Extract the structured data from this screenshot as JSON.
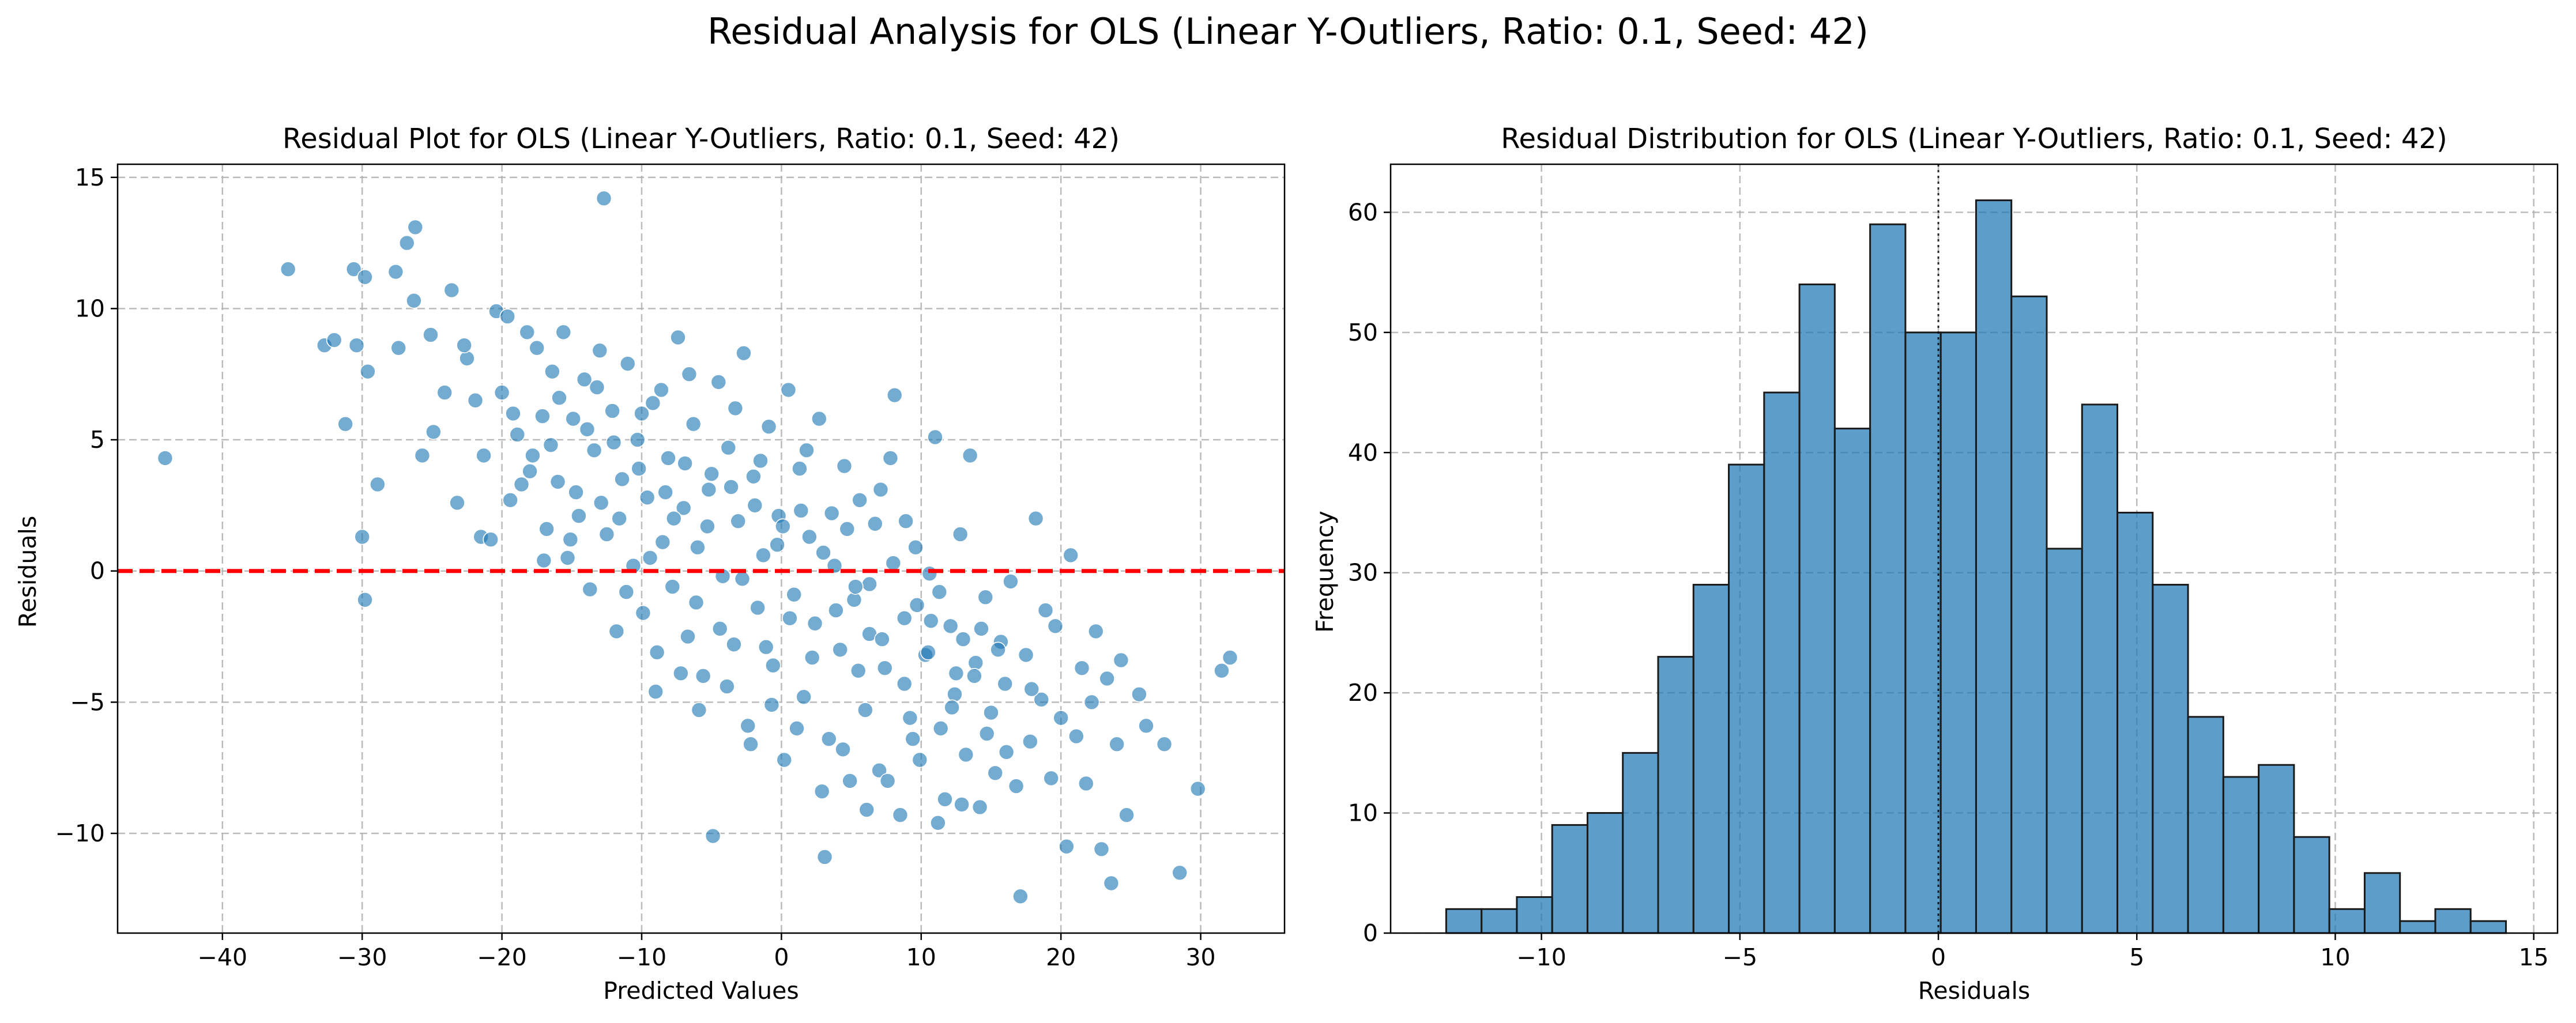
{
  "figure": {
    "suptitle": "Residual Analysis for OLS (Linear Y-Outliers, Ratio: 0.1, Seed: 42)"
  },
  "colors": {
    "points": "#1f77b4",
    "bars": "#1f77b4",
    "bar_edge": "#1a1a1a",
    "zero_line": "#ff0000"
  },
  "chart_data": [
    {
      "type": "scatter",
      "title": "Residual Plot for OLS (Linear Y-Outliers, Ratio: 0.1, Seed: 42)",
      "xlabel": "Predicted Values",
      "ylabel": "Residuals",
      "xlim": [
        -47.5,
        36
      ],
      "ylim": [
        -13.8,
        15.5
      ],
      "xticks": [
        -40,
        -30,
        -20,
        -10,
        0,
        10,
        20,
        30
      ],
      "yticks": [
        -10,
        -5,
        0,
        5,
        10,
        15
      ],
      "xtick_labels": [
        "−40",
        "−30",
        "−20",
        "−10",
        "0",
        "10",
        "20",
        "30"
      ],
      "ytick_labels": [
        "−10",
        "−5",
        "0",
        "5",
        "10",
        "15"
      ],
      "grid": true,
      "reference_line": {
        "y": 0,
        "style": "dashed",
        "color": "#ff0000"
      },
      "points": [
        [
          -44.1,
          4.3
        ],
        [
          -35.3,
          11.5
        ],
        [
          -32.7,
          8.6
        ],
        [
          -32.0,
          8.8
        ],
        [
          -31.2,
          5.6
        ],
        [
          -30.6,
          11.5
        ],
        [
          -30.4,
          8.6
        ],
        [
          -29.8,
          11.2
        ],
        [
          -29.6,
          7.6
        ],
        [
          -30.0,
          1.3
        ],
        [
          -29.8,
          -1.1
        ],
        [
          -28.9,
          3.3
        ],
        [
          -27.6,
          11.4
        ],
        [
          -27.4,
          8.5
        ],
        [
          -26.8,
          12.5
        ],
        [
          -26.2,
          13.1
        ],
        [
          -26.3,
          10.3
        ],
        [
          -25.7,
          4.4
        ],
        [
          -25.1,
          9.0
        ],
        [
          -24.9,
          5.3
        ],
        [
          -24.1,
          6.8
        ],
        [
          -23.6,
          10.7
        ],
        [
          -23.2,
          2.6
        ],
        [
          -22.5,
          8.1
        ],
        [
          -22.7,
          8.6
        ],
        [
          -21.9,
          6.5
        ],
        [
          -21.5,
          1.3
        ],
        [
          -21.3,
          4.4
        ],
        [
          -20.8,
          1.2
        ],
        [
          -20.4,
          9.9
        ],
        [
          -20.0,
          6.8
        ],
        [
          -19.6,
          9.7
        ],
        [
          -19.4,
          2.7
        ],
        [
          -18.9,
          5.2
        ],
        [
          -18.6,
          3.3
        ],
        [
          -18.2,
          9.1
        ],
        [
          -17.8,
          4.4
        ],
        [
          -17.5,
          8.5
        ],
        [
          -17.1,
          5.9
        ],
        [
          -16.8,
          1.6
        ],
        [
          -16.4,
          7.6
        ],
        [
          -16.0,
          3.4
        ],
        [
          -15.6,
          9.1
        ],
        [
          -15.3,
          0.5
        ],
        [
          -14.9,
          5.8
        ],
        [
          -14.5,
          2.1
        ],
        [
          -14.1,
          7.3
        ],
        [
          -13.7,
          -0.7
        ],
        [
          -13.4,
          4.6
        ],
        [
          -13.0,
          8.4
        ],
        [
          -12.7,
          14.2
        ],
        [
          -12.5,
          1.4
        ],
        [
          -12.1,
          6.1
        ],
        [
          -11.8,
          -2.3
        ],
        [
          -11.4,
          3.5
        ],
        [
          -11.0,
          7.9
        ],
        [
          -10.6,
          0.2
        ],
        [
          -10.3,
          5.0
        ],
        [
          -9.9,
          -1.6
        ],
        [
          -9.6,
          2.8
        ],
        [
          -9.2,
          6.4
        ],
        [
          -8.9,
          -3.1
        ],
        [
          -8.5,
          1.1
        ],
        [
          -8.1,
          4.3
        ],
        [
          -7.8,
          -0.6
        ],
        [
          -7.4,
          8.9
        ],
        [
          -7.0,
          2.4
        ],
        [
          -6.7,
          -2.5
        ],
        [
          -6.3,
          5.6
        ],
        [
          -6.0,
          0.9
        ],
        [
          -5.6,
          -4.0
        ],
        [
          -5.2,
          3.1
        ],
        [
          -4.9,
          -10.1
        ],
        [
          -4.5,
          7.2
        ],
        [
          -4.2,
          -0.2
        ],
        [
          -3.8,
          4.7
        ],
        [
          -3.4,
          -2.8
        ],
        [
          -3.1,
          1.9
        ],
        [
          -2.7,
          8.3
        ],
        [
          -2.4,
          -5.9
        ],
        [
          -2.0,
          3.6
        ],
        [
          -1.7,
          -1.4
        ],
        [
          -1.3,
          0.6
        ],
        [
          -0.9,
          5.5
        ],
        [
          -0.6,
          -3.6
        ],
        [
          -0.2,
          2.1
        ],
        [
          0.2,
          -7.2
        ],
        [
          0.5,
          6.9
        ],
        [
          0.9,
          -0.9
        ],
        [
          1.3,
          3.9
        ],
        [
          1.6,
          -4.8
        ],
        [
          2.0,
          1.3
        ],
        [
          2.4,
          -2.0
        ],
        [
          2.7,
          5.8
        ],
        [
          3.1,
          -10.9
        ],
        [
          3.4,
          -6.4
        ],
        [
          3.8,
          0.2
        ],
        [
          4.2,
          -3.0
        ],
        [
          4.5,
          4.0
        ],
        [
          4.9,
          -8.0
        ],
        [
          5.2,
          -1.1
        ],
        [
          5.6,
          2.7
        ],
        [
          6.0,
          -5.3
        ],
        [
          6.3,
          -2.4
        ],
        [
          6.7,
          1.8
        ],
        [
          7.0,
          -7.6
        ],
        [
          7.4,
          -3.7
        ],
        [
          7.8,
          4.3
        ],
        [
          8.1,
          6.7
        ],
        [
          8.5,
          -9.3
        ],
        [
          8.8,
          -1.8
        ],
        [
          9.2,
          -5.6
        ],
        [
          9.6,
          0.9
        ],
        [
          9.9,
          -7.2
        ],
        [
          10.3,
          -3.2
        ],
        [
          10.6,
          -0.1
        ],
        [
          11.0,
          5.1
        ],
        [
          11.4,
          -6.0
        ],
        [
          11.7,
          -8.7
        ],
        [
          12.1,
          -2.1
        ],
        [
          12.4,
          -4.7
        ],
        [
          12.8,
          1.4
        ],
        [
          13.2,
          -7.0
        ],
        [
          13.5,
          4.4
        ],
        [
          13.9,
          -3.5
        ],
        [
          14.2,
          -9.0
        ],
        [
          14.6,
          -1.0
        ],
        [
          15.0,
          -5.4
        ],
        [
          15.3,
          -7.7
        ],
        [
          15.7,
          -2.7
        ],
        [
          16.0,
          -4.3
        ],
        [
          16.4,
          -0.4
        ],
        [
          16.8,
          -8.2
        ],
        [
          17.1,
          -12.4
        ],
        [
          17.5,
          -3.2
        ],
        [
          17.8,
          -6.5
        ],
        [
          18.2,
          2.0
        ],
        [
          18.6,
          -4.9
        ],
        [
          18.9,
          -1.5
        ],
        [
          19.3,
          -7.9
        ],
        [
          19.6,
          -2.1
        ],
        [
          20.0,
          -5.6
        ],
        [
          20.4,
          -10.5
        ],
        [
          20.7,
          0.6
        ],
        [
          21.1,
          -6.3
        ],
        [
          21.5,
          -3.7
        ],
        [
          21.8,
          -8.1
        ],
        [
          22.2,
          -5.0
        ],
        [
          22.5,
          -2.3
        ],
        [
          22.9,
          -10.6
        ],
        [
          23.3,
          -4.1
        ],
        [
          23.6,
          -11.9
        ],
        [
          24.0,
          -6.6
        ],
        [
          24.3,
          -3.4
        ],
        [
          24.7,
          -9.3
        ],
        [
          25.6,
          -4.7
        ],
        [
          26.1,
          -5.9
        ],
        [
          27.4,
          -6.6
        ],
        [
          28.5,
          -11.5
        ],
        [
          29.8,
          -8.3
        ],
        [
          31.5,
          -3.8
        ],
        [
          32.1,
          -3.3
        ],
        [
          -19.2,
          6.0
        ],
        [
          -18.0,
          3.8
        ],
        [
          -17.0,
          0.4
        ],
        [
          -15.9,
          6.6
        ],
        [
          -14.7,
          3.0
        ],
        [
          -13.9,
          5.4
        ],
        [
          -12.9,
          2.6
        ],
        [
          -12.0,
          4.9
        ],
        [
          -11.1,
          -0.8
        ],
        [
          -10.2,
          3.9
        ],
        [
          -9.4,
          0.5
        ],
        [
          -8.6,
          6.9
        ],
        [
          -7.7,
          2.0
        ],
        [
          -6.9,
          4.1
        ],
        [
          -6.1,
          -1.2
        ],
        [
          -5.3,
          1.7
        ],
        [
          -4.4,
          -2.2
        ],
        [
          -3.6,
          3.2
        ],
        [
          -2.8,
          -0.3
        ],
        [
          -1.9,
          2.5
        ],
        [
          -1.1,
          -2.9
        ],
        [
          -0.3,
          1.0
        ],
        [
          0.6,
          -1.8
        ],
        [
          1.4,
          2.3
        ],
        [
          2.2,
          -3.3
        ],
        [
          3.0,
          0.7
        ],
        [
          3.9,
          -1.5
        ],
        [
          4.7,
          1.6
        ],
        [
          5.5,
          -3.8
        ],
        [
          6.3,
          -0.5
        ],
        [
          7.2,
          -2.6
        ],
        [
          8.0,
          0.3
        ],
        [
          8.8,
          -4.3
        ],
        [
          9.7,
          -1.3
        ],
        [
          10.5,
          -3.1
        ],
        [
          11.3,
          -0.8
        ],
        [
          12.2,
          -5.2
        ],
        [
          13.0,
          -2.6
        ],
        [
          13.8,
          -4.0
        ],
        [
          14.7,
          -6.2
        ],
        [
          15.5,
          -3.0
        ],
        [
          -16.5,
          4.8
        ],
        [
          -15.1,
          1.2
        ],
        [
          -13.2,
          7.0
        ],
        [
          -11.6,
          2.0
        ],
        [
          -10.0,
          6.0
        ],
        [
          -8.3,
          3.0
        ],
        [
          -6.6,
          7.5
        ],
        [
          -5.0,
          3.7
        ],
        [
          -3.3,
          6.2
        ],
        [
          -1.5,
          4.2
        ],
        [
          0.1,
          1.7
        ],
        [
          1.8,
          4.6
        ],
        [
          3.6,
          2.2
        ],
        [
          5.3,
          -0.6
        ],
        [
          7.1,
          3.1
        ],
        [
          8.9,
          1.9
        ],
        [
          10.7,
          -1.9
        ],
        [
          12.5,
          -3.9
        ],
        [
          14.3,
          -2.2
        ],
        [
          16.1,
          -6.9
        ],
        [
          17.9,
          -4.5
        ],
        [
          -9.0,
          -4.6
        ],
        [
          -7.2,
          -3.9
        ],
        [
          -5.9,
          -5.3
        ],
        [
          -3.9,
          -4.4
        ],
        [
          -2.2,
          -6.6
        ],
        [
          -0.7,
          -5.1
        ],
        [
          1.1,
          -6.0
        ],
        [
          2.9,
          -8.4
        ],
        [
          4.4,
          -6.8
        ],
        [
          6.1,
          -9.1
        ],
        [
          7.6,
          -8.0
        ],
        [
          9.4,
          -6.4
        ],
        [
          11.2,
          -9.6
        ],
        [
          12.9,
          -8.9
        ]
      ]
    },
    {
      "type": "bar",
      "subtype": "histogram",
      "title": "Residual Distribution for OLS (Linear Y-Outliers, Ratio: 0.1, Seed: 42)",
      "xlabel": "Residuals",
      "ylabel": "Frequency",
      "xlim": [
        -13.8,
        15.6
      ],
      "ylim": [
        0,
        64
      ],
      "xticks": [
        -10,
        -5,
        0,
        5,
        10,
        15
      ],
      "yticks": [
        0,
        10,
        20,
        30,
        40,
        50,
        60
      ],
      "xtick_labels": [
        "−10",
        "−5",
        "0",
        "5",
        "10",
        "15"
      ],
      "ytick_labels": [
        "0",
        "10",
        "20",
        "30",
        "40",
        "50",
        "60"
      ],
      "grid": true,
      "reference_line": {
        "x": 0,
        "style": "dotted",
        "color": "#000000"
      },
      "bin_start": -12.4,
      "bin_width": 0.89,
      "counts": [
        2,
        2,
        3,
        9,
        10,
        15,
        23,
        29,
        39,
        45,
        54,
        42,
        59,
        50,
        50,
        61,
        53,
        32,
        44,
        35,
        29,
        18,
        13,
        14,
        8,
        2,
        5,
        1,
        2,
        1
      ]
    }
  ]
}
